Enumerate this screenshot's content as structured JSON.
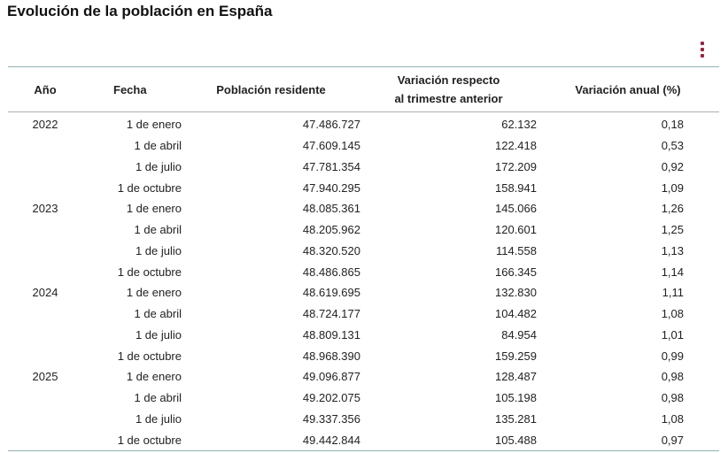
{
  "title": "Evolución de la población en España",
  "menu_icon": "kebab-menu-icon",
  "accent_color": "#a4213c",
  "table": {
    "headers": {
      "year": "Año",
      "date": "Fecha",
      "population": "Población residente",
      "quarterly_line1": "Variación respecto",
      "quarterly_line2": "al trimestre anterior",
      "annual": "Variación anual (%)"
    },
    "rows": [
      {
        "year": "2022",
        "date": "1 de enero",
        "population": "47.486.727",
        "quarterly": "62.132",
        "annual": "0,18"
      },
      {
        "year": "",
        "date": "1 de abril",
        "population": "47.609.145",
        "quarterly": "122.418",
        "annual": "0,53"
      },
      {
        "year": "",
        "date": "1 de julio",
        "population": "47.781.354",
        "quarterly": "172.209",
        "annual": "0,92"
      },
      {
        "year": "",
        "date": "1 de octubre",
        "population": "47.940.295",
        "quarterly": "158.941",
        "annual": "1,09"
      },
      {
        "year": "2023",
        "date": "1 de enero",
        "population": "48.085.361",
        "quarterly": "145.066",
        "annual": "1,26"
      },
      {
        "year": "",
        "date": "1 de abril",
        "population": "48.205.962",
        "quarterly": "120.601",
        "annual": "1,25"
      },
      {
        "year": "",
        "date": "1 de julio",
        "population": "48.320.520",
        "quarterly": "114.558",
        "annual": "1,13"
      },
      {
        "year": "",
        "date": "1 de octubre",
        "population": "48.486.865",
        "quarterly": "166.345",
        "annual": "1,14"
      },
      {
        "year": "2024",
        "date": "1 de enero",
        "population": "48.619.695",
        "quarterly": "132.830",
        "annual": "1,11"
      },
      {
        "year": "",
        "date": "1 de abril",
        "population": "48.724.177",
        "quarterly": "104.482",
        "annual": "1,08"
      },
      {
        "year": "",
        "date": "1 de julio",
        "population": "48.809.131",
        "quarterly": "84.954",
        "annual": "1,01"
      },
      {
        "year": "",
        "date": "1 de octubre",
        "population": "48.968.390",
        "quarterly": "159.259",
        "annual": "0,99"
      },
      {
        "year": "2025",
        "date": "1 de enero",
        "population": "49.096.877",
        "quarterly": "128.487",
        "annual": "0,98"
      },
      {
        "year": "",
        "date": "1 de abril",
        "population": "49.202.075",
        "quarterly": "105.198",
        "annual": "0,98"
      },
      {
        "year": "",
        "date": "1 de julio",
        "population": "49.337.356",
        "quarterly": "135.281",
        "annual": "1,08"
      },
      {
        "year": "",
        "date": "1 de octubre",
        "population": "49.442.844",
        "quarterly": "105.488",
        "annual": "0,97"
      }
    ]
  }
}
